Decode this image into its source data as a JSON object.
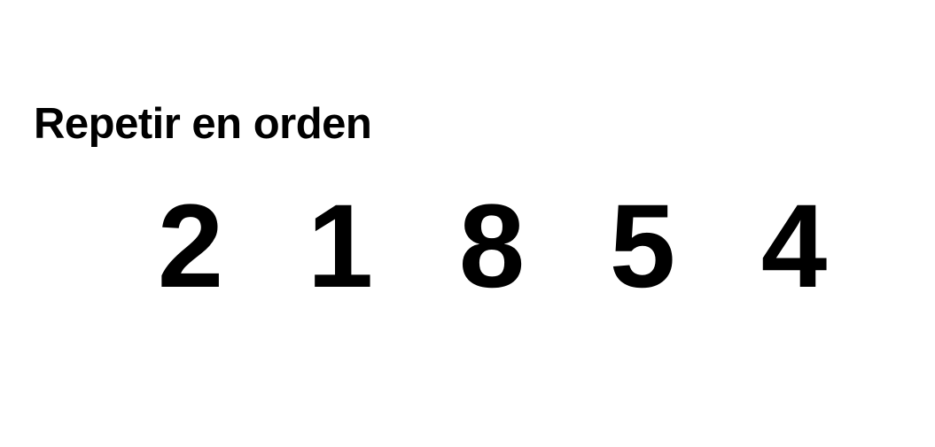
{
  "instruction": "Repetir en orden",
  "sequence": [
    "2",
    "1",
    "8",
    "5",
    "4"
  ]
}
